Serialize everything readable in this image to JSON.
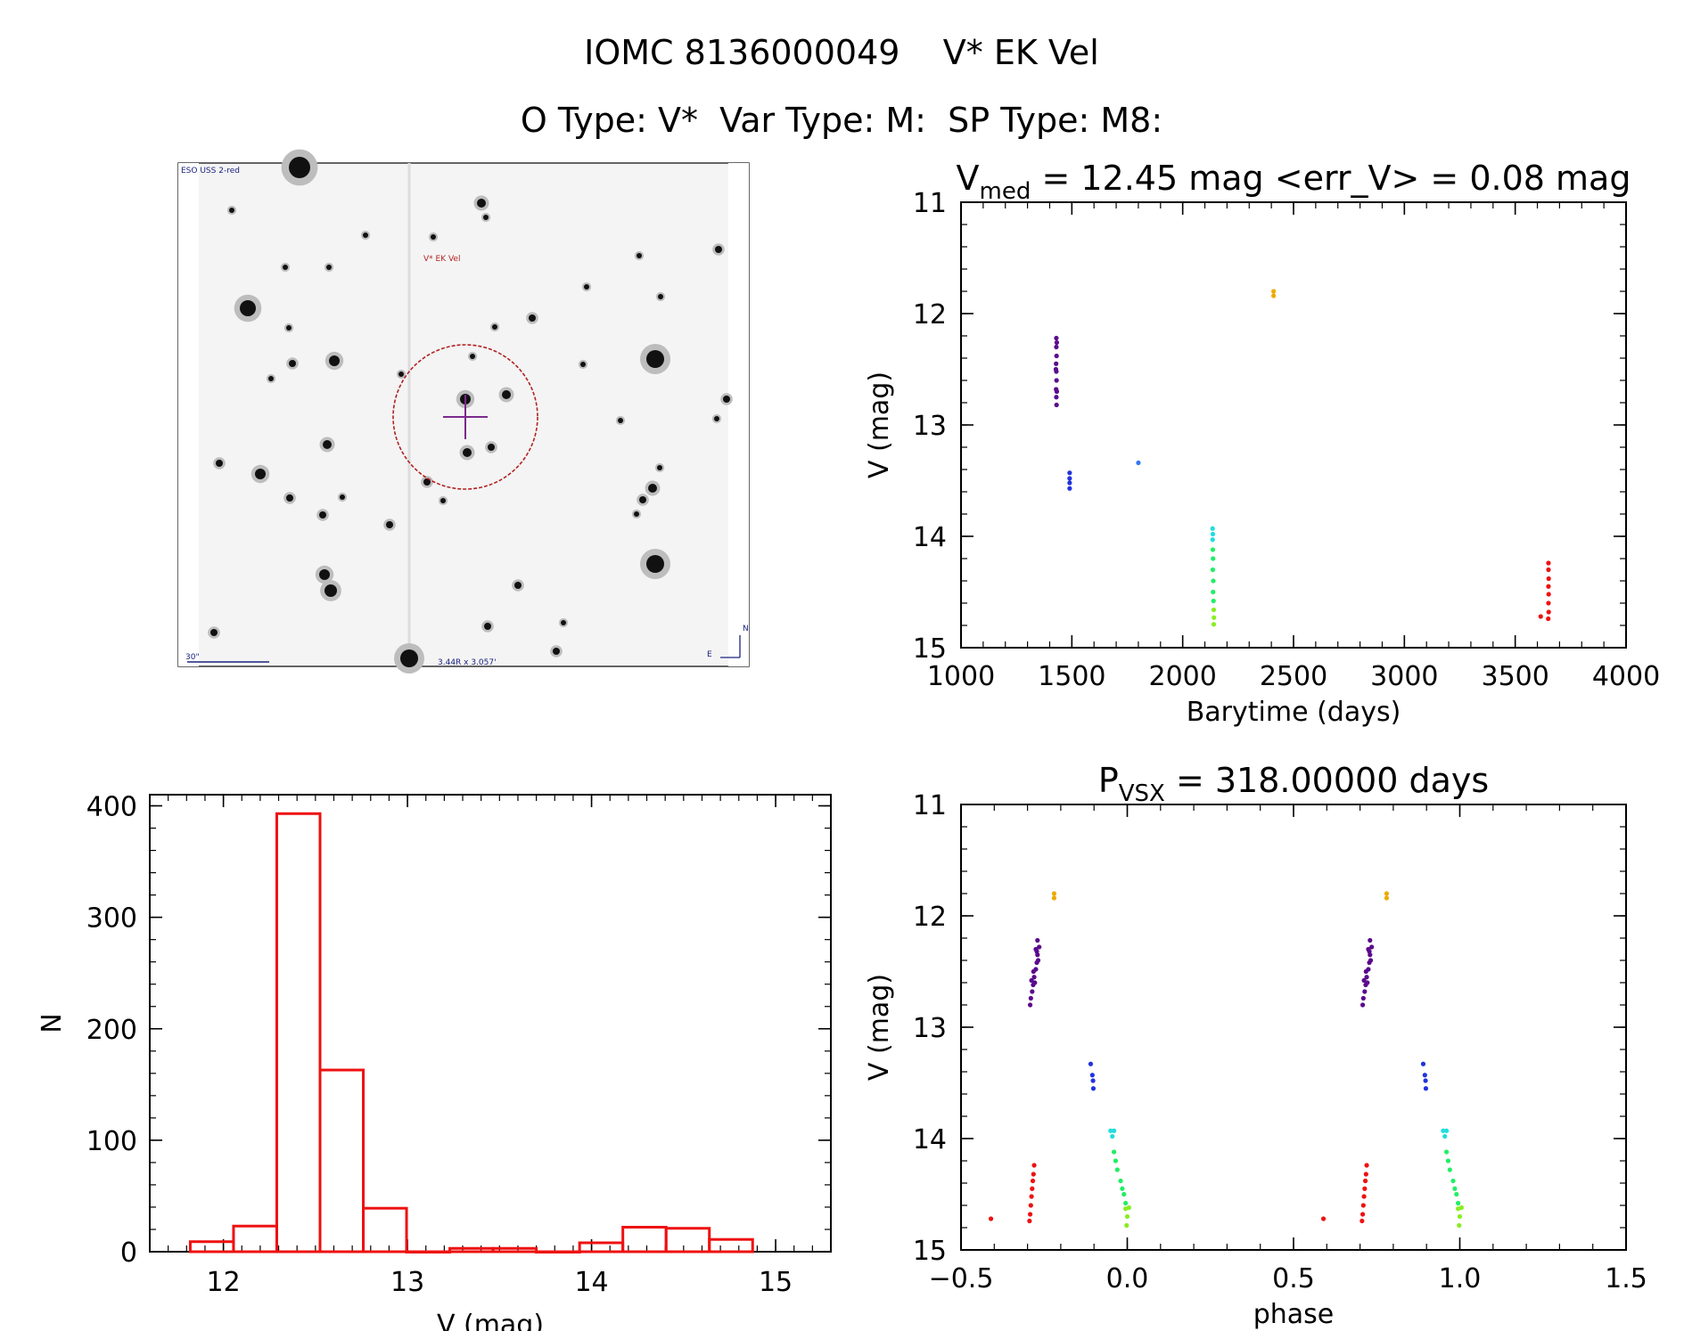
{
  "header": {
    "title_line1": "IOMC 8136000049    V* EK Vel",
    "title_line2": "O Type: V*  Var Type: M:  SP Type: M8:"
  },
  "finder": {
    "survey_label": "ESO USS 2-red",
    "target_label": "V* EK Vel",
    "scale_label": "30\"",
    "scale_note": "3.44R x 3.057'",
    "north_label": "N",
    "east_label": "E"
  },
  "colors": {
    "hist": "#ee1111",
    "purple": "#5a0a8c",
    "blue": "#2233dd",
    "azure": "#3377ee",
    "cyan": "#22dddd",
    "green": "#22ee66",
    "lime": "#88ee22",
    "orange": "#eeaa00",
    "red": "#ee1111",
    "circle": "#b22222",
    "cross": "#7a2a8a"
  },
  "chart_data": [
    {
      "id": "lightcurve",
      "type": "scatter",
      "title_prefix": "V",
      "title_sub": "med",
      "title_rest": " = 12.45 mag <err_V> = 0.08 mag",
      "xlabel": "Barytime (days)",
      "ylabel": "V (mag)",
      "xlim": [
        1000,
        4000
      ],
      "ylim": [
        15,
        11
      ],
      "xticks": [
        1000,
        1500,
        2000,
        2500,
        3000,
        3500,
        4000
      ],
      "yticks": [
        11,
        12,
        13,
        14,
        15
      ],
      "series": [
        {
          "name": "purple",
          "color_key": "purple",
          "points": [
            [
              1430,
              12.22
            ],
            [
              1430,
              12.3
            ],
            [
              1431,
              12.38
            ],
            [
              1429,
              12.45
            ],
            [
              1430,
              12.52
            ],
            [
              1431,
              12.6
            ],
            [
              1429,
              12.68
            ],
            [
              1430,
              12.75
            ],
            [
              1431,
              12.82
            ],
            [
              1432,
              12.26
            ],
            [
              1428,
              12.5
            ],
            [
              1432,
              12.7
            ]
          ]
        },
        {
          "name": "blue",
          "color_key": "blue",
          "points": [
            [
              1490,
              13.43
            ],
            [
              1490,
              13.48
            ],
            [
              1490,
              13.52
            ],
            [
              1490,
              13.57
            ]
          ]
        },
        {
          "name": "azure",
          "color_key": "azure",
          "points": [
            [
              1800,
              13.34
            ]
          ]
        },
        {
          "name": "cyan",
          "color_key": "cyan",
          "points": [
            [
              2135,
              13.93
            ],
            [
              2136,
              13.98
            ],
            [
              2135,
              14.03
            ]
          ]
        },
        {
          "name": "green",
          "color_key": "green",
          "points": [
            [
              2136,
              14.12
            ],
            [
              2137,
              14.2
            ],
            [
              2136,
              14.3
            ],
            [
              2138,
              14.4
            ],
            [
              2137,
              14.5
            ],
            [
              2139,
              14.58
            ]
          ]
        },
        {
          "name": "lime",
          "color_key": "lime",
          "points": [
            [
              2140,
              14.66
            ],
            [
              2141,
              14.73
            ],
            [
              2140,
              14.79
            ]
          ]
        },
        {
          "name": "orange",
          "color_key": "orange",
          "points": [
            [
              2410,
              11.8
            ],
            [
              2410,
              11.84
            ]
          ]
        },
        {
          "name": "red",
          "color_key": "red",
          "points": [
            [
              3650,
              14.24
            ],
            [
              3650,
              14.3
            ],
            [
              3651,
              14.38
            ],
            [
              3650,
              14.45
            ],
            [
              3651,
              14.52
            ],
            [
              3650,
              14.6
            ],
            [
              3651,
              14.68
            ],
            [
              3649,
              14.74
            ],
            [
              3615,
              14.72
            ]
          ]
        }
      ]
    },
    {
      "id": "histogram",
      "type": "bar",
      "xlabel": "V (mag)",
      "ylabel": "N",
      "xlim": [
        11.6,
        15.3
      ],
      "ylim": [
        0,
        410
      ],
      "xticks": [
        12,
        13,
        14,
        15
      ],
      "yticks": [
        0,
        100,
        200,
        300,
        400
      ],
      "bin_width": 0.235,
      "bins": [
        {
          "left": 11.82,
          "count": 9
        },
        {
          "left": 12.055,
          "count": 23
        },
        {
          "left": 12.29,
          "count": 393
        },
        {
          "left": 12.525,
          "count": 163
        },
        {
          "left": 12.76,
          "count": 39
        },
        {
          "left": 12.995,
          "count": 0
        },
        {
          "left": 13.23,
          "count": 3
        },
        {
          "left": 13.465,
          "count": 3
        },
        {
          "left": 13.7,
          "count": 0
        },
        {
          "left": 13.935,
          "count": 8
        },
        {
          "left": 14.17,
          "count": 22
        },
        {
          "left": 14.405,
          "count": 21
        },
        {
          "left": 14.64,
          "count": 11
        }
      ]
    },
    {
      "id": "phased",
      "type": "scatter",
      "title_prefix": "P",
      "title_sub": "VSX",
      "title_rest": " = 318.00000 days",
      "xlabel": "phase",
      "ylabel": "V (mag)",
      "xlim": [
        -0.5,
        1.5
      ],
      "ylim": [
        15,
        11
      ],
      "xticks": [
        -0.5,
        0.0,
        0.5,
        1.0,
        1.5
      ],
      "xtick_labels": [
        "−0.5",
        "0.0",
        "0.5",
        "1.0",
        "1.5"
      ],
      "yticks": [
        11,
        12,
        13,
        14,
        15
      ],
      "series": [
        {
          "name": "purple",
          "color_key": "purple",
          "points": [
            [
              -0.27,
              12.22
            ],
            [
              -0.265,
              12.28
            ],
            [
              -0.27,
              12.35
            ],
            [
              -0.272,
              12.42
            ],
            [
              -0.275,
              12.48
            ],
            [
              -0.28,
              12.55
            ],
            [
              -0.283,
              12.62
            ],
            [
              -0.286,
              12.68
            ],
            [
              -0.29,
              12.74
            ],
            [
              -0.292,
              12.8
            ],
            [
              -0.275,
              12.3
            ],
            [
              -0.268,
              12.4
            ],
            [
              -0.282,
              12.5
            ],
            [
              -0.278,
              12.6
            ],
            [
              -0.288,
              12.58
            ],
            [
              -0.272,
              12.32
            ],
            [
              0.73,
              12.22
            ],
            [
              0.735,
              12.28
            ],
            [
              0.73,
              12.35
            ],
            [
              0.728,
              12.42
            ],
            [
              0.725,
              12.48
            ],
            [
              0.72,
              12.55
            ],
            [
              0.717,
              12.62
            ],
            [
              0.714,
              12.68
            ],
            [
              0.71,
              12.74
            ],
            [
              0.708,
              12.8
            ],
            [
              0.725,
              12.3
            ],
            [
              0.732,
              12.4
            ],
            [
              0.718,
              12.5
            ],
            [
              0.722,
              12.6
            ],
            [
              0.712,
              12.58
            ],
            [
              0.728,
              12.32
            ]
          ]
        },
        {
          "name": "blue",
          "color_key": "blue",
          "points": [
            [
              -0.11,
              13.33
            ],
            [
              -0.105,
              13.43
            ],
            [
              -0.103,
              13.48
            ],
            [
              -0.102,
              13.55
            ],
            [
              0.89,
              13.33
            ],
            [
              0.895,
              13.43
            ],
            [
              0.897,
              13.48
            ],
            [
              0.898,
              13.55
            ]
          ]
        },
        {
          "name": "cyan",
          "color_key": "cyan",
          "points": [
            [
              -0.05,
              13.93
            ],
            [
              -0.045,
              13.98
            ],
            [
              -0.04,
              13.93
            ],
            [
              0.95,
              13.93
            ],
            [
              0.955,
              13.98
            ],
            [
              0.96,
              13.93
            ]
          ]
        },
        {
          "name": "green",
          "color_key": "green",
          "points": [
            [
              -0.04,
              14.12
            ],
            [
              -0.035,
              14.2
            ],
            [
              -0.03,
              14.28
            ],
            [
              -0.02,
              14.38
            ],
            [
              -0.015,
              14.45
            ],
            [
              -0.01,
              14.5
            ],
            [
              -0.005,
              14.58
            ],
            [
              0.96,
              14.12
            ],
            [
              0.965,
              14.2
            ],
            [
              0.97,
              14.28
            ],
            [
              0.98,
              14.38
            ],
            [
              0.985,
              14.45
            ],
            [
              0.99,
              14.5
            ],
            [
              0.995,
              14.58
            ]
          ]
        },
        {
          "name": "lime",
          "color_key": "lime",
          "points": [
            [
              -0.005,
              14.63
            ],
            [
              0.0,
              14.7
            ],
            [
              0.005,
              14.62
            ],
            [
              -0.002,
              14.78
            ],
            [
              0.995,
              14.63
            ],
            [
              1.0,
              14.7
            ],
            [
              1.005,
              14.62
            ],
            [
              0.998,
              14.78
            ]
          ]
        },
        {
          "name": "orange",
          "color_key": "orange",
          "points": [
            [
              -0.22,
              11.8
            ],
            [
              -0.22,
              11.84
            ],
            [
              0.78,
              11.8
            ],
            [
              0.78,
              11.84
            ]
          ]
        },
        {
          "name": "red",
          "color_key": "red",
          "points": [
            [
              -0.28,
              14.24
            ],
            [
              -0.282,
              14.32
            ],
            [
              -0.284,
              14.38
            ],
            [
              -0.286,
              14.45
            ],
            [
              -0.288,
              14.52
            ],
            [
              -0.29,
              14.6
            ],
            [
              -0.292,
              14.68
            ],
            [
              -0.294,
              14.74
            ],
            [
              -0.41,
              14.72
            ],
            [
              0.72,
              14.24
            ],
            [
              0.718,
              14.32
            ],
            [
              0.716,
              14.38
            ],
            [
              0.714,
              14.45
            ],
            [
              0.712,
              14.52
            ],
            [
              0.71,
              14.6
            ],
            [
              0.708,
              14.68
            ],
            [
              0.706,
              14.74
            ],
            [
              0.59,
              14.72
            ]
          ]
        }
      ]
    }
  ]
}
